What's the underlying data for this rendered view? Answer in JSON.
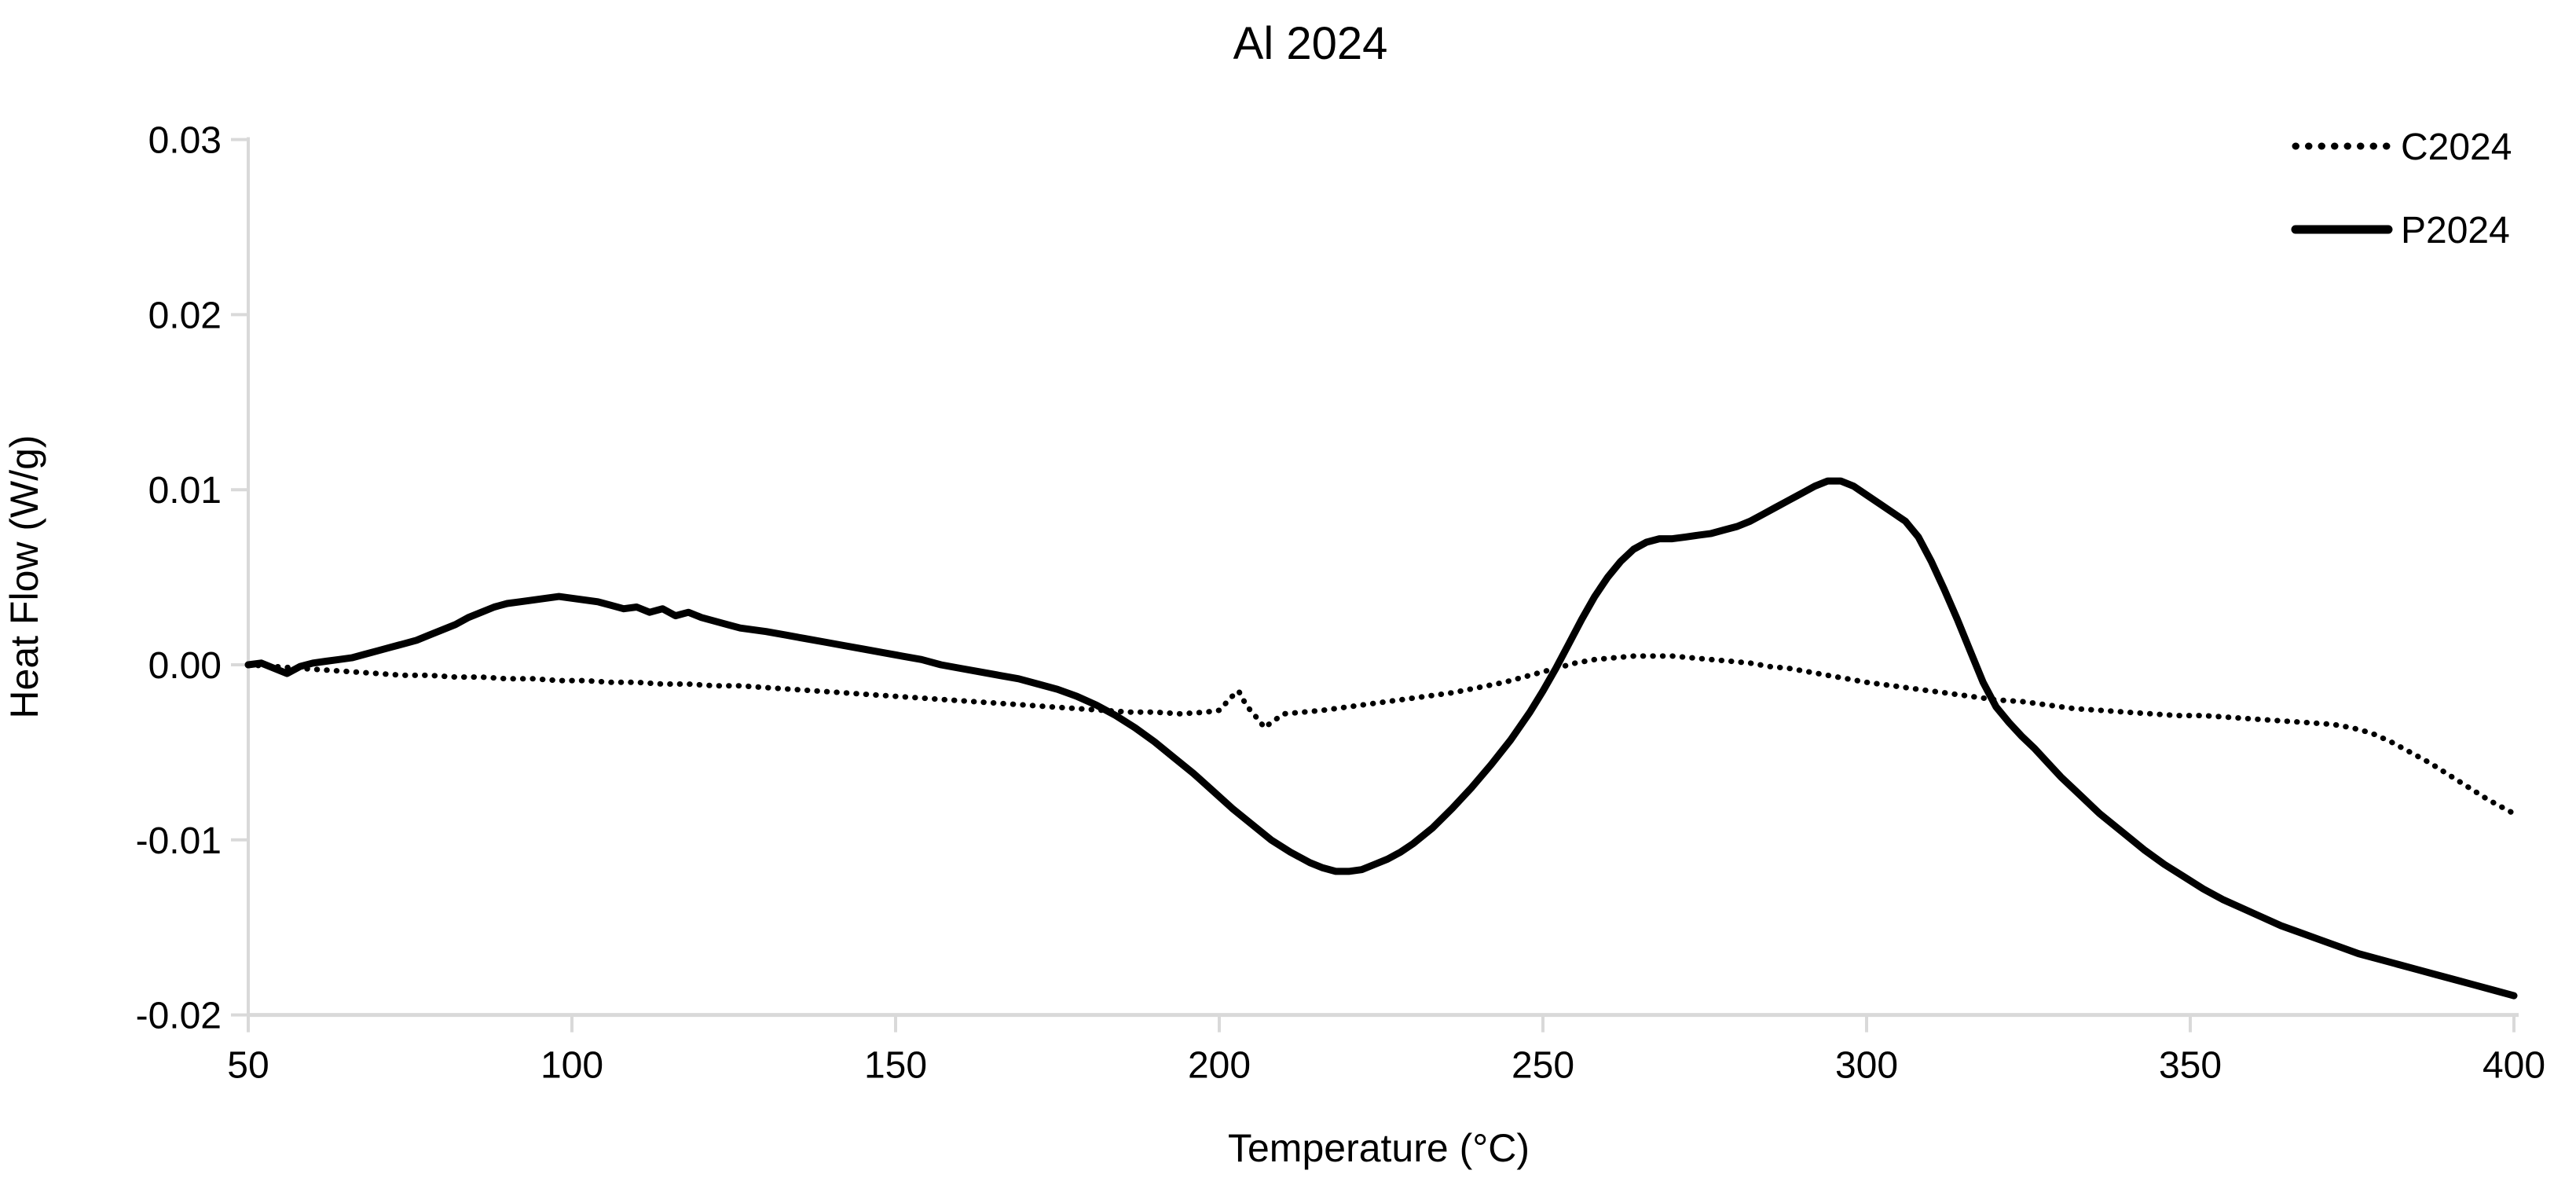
{
  "colors": {
    "curve": "#000000",
    "axis": "#d9d9d9",
    "text": "#000000",
    "background": "#ffffff"
  },
  "chart_data": {
    "type": "line",
    "title": "Al 2024",
    "xlabel": "Temperature (°C)",
    "ylabel": "Heat Flow (W/g)",
    "xlim": [
      50,
      400
    ],
    "ylim": [
      -0.02,
      0.03
    ],
    "grid": false,
    "legend_position": "top-right",
    "x_ticks": [
      "50",
      "100",
      "150",
      "200",
      "250",
      "300",
      "350",
      "400"
    ],
    "y_ticks": [
      "0.03",
      "0.02",
      "0.01",
      "0.00",
      "-0.01",
      "-0.02"
    ],
    "y_tick_values": [
      0.03,
      0.02,
      0.01,
      0.0,
      -0.01,
      -0.02
    ],
    "x_tick_values": [
      50,
      100,
      150,
      200,
      250,
      300,
      350,
      400
    ],
    "legend": [
      {
        "label": "C2024",
        "style": "dotted"
      },
      {
        "label": "P2024",
        "style": "solid"
      }
    ],
    "series": [
      {
        "name": "C2024",
        "style": "dotted",
        "points": [
          [
            50,
            0.0
          ],
          [
            54,
            -0.0001
          ],
          [
            58,
            -0.0002
          ],
          [
            62,
            -0.0003
          ],
          [
            66,
            -0.0004
          ],
          [
            70,
            -0.0005
          ],
          [
            74,
            -0.0006
          ],
          [
            78,
            -0.0006
          ],
          [
            82,
            -0.0007
          ],
          [
            86,
            -0.0007
          ],
          [
            90,
            -0.0008
          ],
          [
            94,
            -0.0008
          ],
          [
            98,
            -0.0009
          ],
          [
            102,
            -0.0009
          ],
          [
            106,
            -0.001
          ],
          [
            110,
            -0.001
          ],
          [
            114,
            -0.0011
          ],
          [
            118,
            -0.0011
          ],
          [
            122,
            -0.0012
          ],
          [
            126,
            -0.0012
          ],
          [
            130,
            -0.0013
          ],
          [
            134,
            -0.0014
          ],
          [
            138,
            -0.0015
          ],
          [
            142,
            -0.0016
          ],
          [
            146,
            -0.0017
          ],
          [
            150,
            -0.0018
          ],
          [
            154,
            -0.0019
          ],
          [
            158,
            -0.002
          ],
          [
            162,
            -0.0021
          ],
          [
            166,
            -0.0022
          ],
          [
            170,
            -0.0023
          ],
          [
            174,
            -0.0024
          ],
          [
            178,
            -0.0025
          ],
          [
            182,
            -0.0026
          ],
          [
            186,
            -0.0027
          ],
          [
            190,
            -0.0027
          ],
          [
            194,
            -0.0028
          ],
          [
            198,
            -0.0027
          ],
          [
            200,
            -0.0026
          ],
          [
            202,
            -0.0018
          ],
          [
            203,
            -0.0015
          ],
          [
            204,
            -0.0022
          ],
          [
            205,
            -0.0027
          ],
          [
            206,
            -0.0031
          ],
          [
            207,
            -0.0036
          ],
          [
            208,
            -0.0033
          ],
          [
            210,
            -0.0028
          ],
          [
            213,
            -0.0027
          ],
          [
            216,
            -0.0026
          ],
          [
            220,
            -0.0024
          ],
          [
            224,
            -0.0022
          ],
          [
            228,
            -0.002
          ],
          [
            232,
            -0.0018
          ],
          [
            236,
            -0.0016
          ],
          [
            240,
            -0.0013
          ],
          [
            244,
            -0.001
          ],
          [
            248,
            -0.0006
          ],
          [
            252,
            -0.0002
          ],
          [
            255,
            0.0001
          ],
          [
            258,
            0.0003
          ],
          [
            261,
            0.0004
          ],
          [
            264,
            0.0005
          ],
          [
            267,
            0.0005
          ],
          [
            270,
            0.0005
          ],
          [
            273,
            0.0004
          ],
          [
            276,
            0.0003
          ],
          [
            279,
            0.0002
          ],
          [
            282,
            0.0001
          ],
          [
            285,
            -0.0001
          ],
          [
            288,
            -0.0002
          ],
          [
            291,
            -0.0004
          ],
          [
            294,
            -0.0006
          ],
          [
            297,
            -0.0008
          ],
          [
            300,
            -0.001
          ],
          [
            304,
            -0.0012
          ],
          [
            308,
            -0.0014
          ],
          [
            312,
            -0.0016
          ],
          [
            316,
            -0.0018
          ],
          [
            320,
            -0.002
          ],
          [
            324,
            -0.0021
          ],
          [
            328,
            -0.0023
          ],
          [
            332,
            -0.0025
          ],
          [
            336,
            -0.0026
          ],
          [
            340,
            -0.0027
          ],
          [
            344,
            -0.0028
          ],
          [
            348,
            -0.0029
          ],
          [
            352,
            -0.0029
          ],
          [
            356,
            -0.003
          ],
          [
            360,
            -0.0031
          ],
          [
            364,
            -0.0032
          ],
          [
            368,
            -0.0033
          ],
          [
            372,
            -0.0034
          ],
          [
            375,
            -0.0036
          ],
          [
            378,
            -0.0039
          ],
          [
            381,
            -0.0044
          ],
          [
            384,
            -0.005
          ],
          [
            387,
            -0.0056
          ],
          [
            390,
            -0.0063
          ],
          [
            393,
            -0.007
          ],
          [
            396,
            -0.0077
          ],
          [
            398,
            -0.0081
          ],
          [
            400,
            -0.0085
          ]
        ]
      },
      {
        "name": "P2024",
        "style": "solid",
        "points": [
          [
            50,
            0.0
          ],
          [
            52,
            0.0001
          ],
          [
            54,
            -0.0002
          ],
          [
            56,
            -0.0005
          ],
          [
            58,
            -0.0001
          ],
          [
            60,
            0.0001
          ],
          [
            62,
            0.0002
          ],
          [
            64,
            0.0003
          ],
          [
            66,
            0.0004
          ],
          [
            68,
            0.0006
          ],
          [
            70,
            0.0008
          ],
          [
            72,
            0.001
          ],
          [
            74,
            0.0012
          ],
          [
            76,
            0.0014
          ],
          [
            78,
            0.0017
          ],
          [
            80,
            0.002
          ],
          [
            82,
            0.0023
          ],
          [
            84,
            0.0027
          ],
          [
            86,
            0.003
          ],
          [
            88,
            0.0033
          ],
          [
            90,
            0.0035
          ],
          [
            92,
            0.0036
          ],
          [
            94,
            0.0037
          ],
          [
            96,
            0.0038
          ],
          [
            98,
            0.0039
          ],
          [
            100,
            0.0038
          ],
          [
            102,
            0.0037
          ],
          [
            104,
            0.0036
          ],
          [
            106,
            0.0034
          ],
          [
            108,
            0.0032
          ],
          [
            110,
            0.0033
          ],
          [
            112,
            0.003
          ],
          [
            114,
            0.0032
          ],
          [
            116,
            0.0028
          ],
          [
            118,
            0.003
          ],
          [
            120,
            0.0027
          ],
          [
            122,
            0.0025
          ],
          [
            124,
            0.0023
          ],
          [
            126,
            0.0021
          ],
          [
            128,
            0.002
          ],
          [
            130,
            0.0019
          ],
          [
            133,
            0.0017
          ],
          [
            136,
            0.0015
          ],
          [
            139,
            0.0013
          ],
          [
            142,
            0.0011
          ],
          [
            145,
            0.0009
          ],
          [
            148,
            0.0007
          ],
          [
            151,
            0.0005
          ],
          [
            154,
            0.0003
          ],
          [
            157,
            0.0
          ],
          [
            160,
            -0.0002
          ],
          [
            163,
            -0.0004
          ],
          [
            166,
            -0.0006
          ],
          [
            169,
            -0.0008
          ],
          [
            172,
            -0.0011
          ],
          [
            175,
            -0.0014
          ],
          [
            178,
            -0.0018
          ],
          [
            181,
            -0.0023
          ],
          [
            184,
            -0.0029
          ],
          [
            187,
            -0.0036
          ],
          [
            190,
            -0.0044
          ],
          [
            193,
            -0.0053
          ],
          [
            196,
            -0.0062
          ],
          [
            199,
            -0.0072
          ],
          [
            202,
            -0.0082
          ],
          [
            205,
            -0.0091
          ],
          [
            208,
            -0.01
          ],
          [
            211,
            -0.0107
          ],
          [
            214,
            -0.0113
          ],
          [
            216,
            -0.0116
          ],
          [
            218,
            -0.0118
          ],
          [
            220,
            -0.0118
          ],
          [
            222,
            -0.0117
          ],
          [
            224,
            -0.0114
          ],
          [
            226,
            -0.0111
          ],
          [
            228,
            -0.0107
          ],
          [
            230,
            -0.0102
          ],
          [
            233,
            -0.0093
          ],
          [
            236,
            -0.0082
          ],
          [
            239,
            -0.007
          ],
          [
            242,
            -0.0057
          ],
          [
            245,
            -0.0043
          ],
          [
            248,
            -0.0027
          ],
          [
            250,
            -0.0015
          ],
          [
            252,
            -0.0002
          ],
          [
            254,
            0.0012
          ],
          [
            256,
            0.0026
          ],
          [
            258,
            0.0039
          ],
          [
            260,
            0.005
          ],
          [
            262,
            0.0059
          ],
          [
            264,
            0.0066
          ],
          [
            266,
            0.007
          ],
          [
            268,
            0.0072
          ],
          [
            270,
            0.0072
          ],
          [
            272,
            0.0073
          ],
          [
            274,
            0.0074
          ],
          [
            276,
            0.0075
          ],
          [
            278,
            0.0077
          ],
          [
            280,
            0.0079
          ],
          [
            282,
            0.0082
          ],
          [
            284,
            0.0086
          ],
          [
            286,
            0.009
          ],
          [
            288,
            0.0094
          ],
          [
            290,
            0.0098
          ],
          [
            292,
            0.0102
          ],
          [
            294,
            0.0105
          ],
          [
            296,
            0.0105
          ],
          [
            298,
            0.0102
          ],
          [
            300,
            0.0097
          ],
          [
            302,
            0.0092
          ],
          [
            304,
            0.0087
          ],
          [
            306,
            0.0082
          ],
          [
            308,
            0.0073
          ],
          [
            310,
            0.0059
          ],
          [
            312,
            0.0043
          ],
          [
            314,
            0.0026
          ],
          [
            316,
            0.0008
          ],
          [
            318,
            -0.001
          ],
          [
            320,
            -0.0024
          ],
          [
            322,
            -0.0033
          ],
          [
            324,
            -0.0041
          ],
          [
            326,
            -0.0048
          ],
          [
            328,
            -0.0056
          ],
          [
            330,
            -0.0064
          ],
          [
            332,
            -0.0071
          ],
          [
            334,
            -0.0078
          ],
          [
            336,
            -0.0085
          ],
          [
            338,
            -0.0091
          ],
          [
            340,
            -0.0097
          ],
          [
            343,
            -0.0106
          ],
          [
            346,
            -0.0114
          ],
          [
            349,
            -0.0121
          ],
          [
            352,
            -0.0128
          ],
          [
            355,
            -0.0134
          ],
          [
            358,
            -0.0139
          ],
          [
            361,
            -0.0144
          ],
          [
            364,
            -0.0149
          ],
          [
            367,
            -0.0153
          ],
          [
            370,
            -0.0157
          ],
          [
            373,
            -0.0161
          ],
          [
            376,
            -0.0165
          ],
          [
            379,
            -0.0168
          ],
          [
            382,
            -0.0171
          ],
          [
            385,
            -0.0174
          ],
          [
            388,
            -0.0177
          ],
          [
            391,
            -0.018
          ],
          [
            394,
            -0.0183
          ],
          [
            397,
            -0.0186
          ],
          [
            400,
            -0.0189
          ]
        ]
      }
    ]
  }
}
